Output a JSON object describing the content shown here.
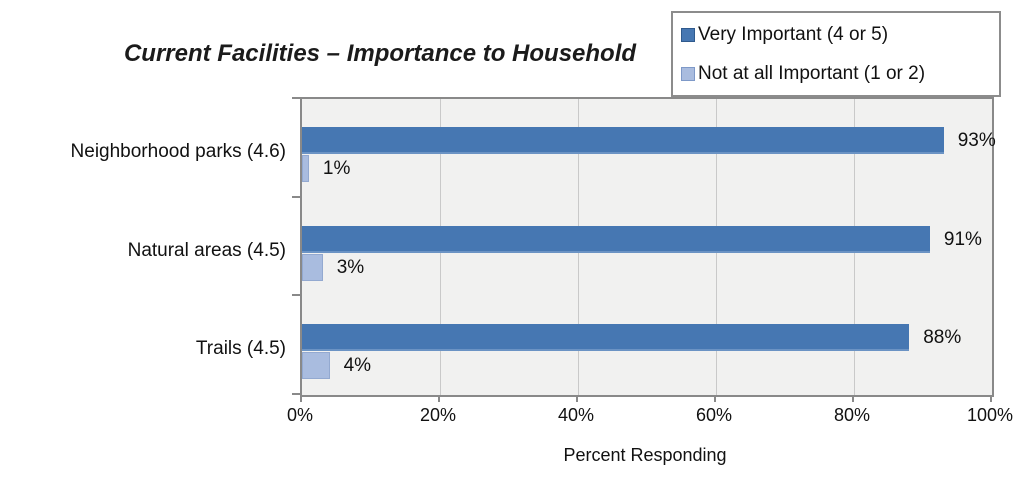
{
  "title": "Current Facilities – Importance to Household",
  "legend": {
    "items": [
      {
        "label": "Very Important (4 or 5)",
        "color": "#4677b2",
        "border": "#2f5a8d"
      },
      {
        "label": "Not at all Important (1 or 2)",
        "color": "#a9bcdf",
        "border": "#7e99c8"
      }
    ]
  },
  "chart_data": {
    "type": "bar",
    "orientation": "horizontal",
    "title": "Current Facilities – Importance to Household",
    "categories": [
      "Neighborhood parks (4.6)",
      "Natural areas (4.5)",
      "Trails (4.5)"
    ],
    "series": [
      {
        "name": "Very Important (4 or 5)",
        "values": [
          93,
          91,
          88
        ],
        "data_labels": [
          "93%",
          "91%",
          "88%"
        ],
        "color": "#4677b2"
      },
      {
        "name": "Not at all Important (1 or 2)",
        "values": [
          1,
          3,
          4
        ],
        "data_labels": [
          "1%",
          "3%",
          "4%"
        ],
        "color": "#a9bcdf"
      }
    ],
    "xlabel": "Percent Responding",
    "ylabel": "",
    "xlim": [
      0,
      100
    ],
    "grid": "vertical-major",
    "legend_position": "top-right"
  },
  "x_axis": {
    "label": "Percent Responding",
    "ticks": [
      {
        "label": "0%",
        "value": 0
      },
      {
        "label": "20%",
        "value": 20
      },
      {
        "label": "40%",
        "value": 40
      },
      {
        "label": "60%",
        "value": 60
      },
      {
        "label": "80%",
        "value": 80
      },
      {
        "label": "100%",
        "value": 100
      }
    ]
  },
  "colors": {
    "plot_background": "#f1f1f0",
    "gridline": "#c9c9c9",
    "axis": "#898989",
    "series_dark": "#4677b2",
    "series_light": "#a9bcdf"
  }
}
